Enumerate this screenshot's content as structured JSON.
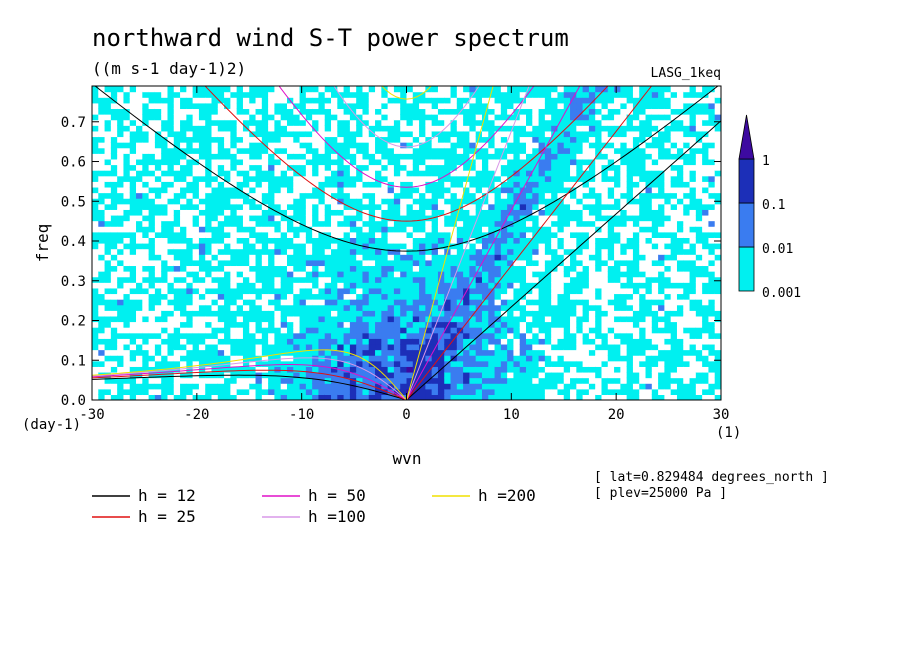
{
  "chart_data": {
    "type": "heatmap",
    "title": "northward wind S-T power spectrum",
    "subtitle": "((m s-1 day-1)2)",
    "model_label": "LASG_1keq",
    "xlabel": "wvn",
    "ylabel": "freq",
    "x_unit": "(1)",
    "y_unit": "(day-1)",
    "xlim": [
      -30,
      30
    ],
    "ylim": [
      0,
      0.79
    ],
    "xticks": [
      "-30",
      "-20",
      "-10",
      "0",
      "10",
      "20",
      "30"
    ],
    "yticks": [
      "0.0",
      "0.1",
      "0.2",
      "0.3",
      "0.4",
      "0.5",
      "0.6",
      "0.7"
    ],
    "colorbar": {
      "levels": [
        "0.001",
        "0.01",
        "0.1",
        "1"
      ],
      "colors": [
        "#ffffff",
        "#00f0f0",
        "#3a7cf0",
        "#1c2fb8",
        "#3d0aa0"
      ]
    },
    "annotations": [
      "[ lat=0.829484 degrees_north ]",
      "[ plev=25000 Pa ]"
    ],
    "dispersion_legend": [
      {
        "label": "h = 12",
        "h": 12,
        "color": "#000000"
      },
      {
        "label": "h = 25",
        "h": 25,
        "color": "#e01010"
      },
      {
        "label": "h = 50",
        "h": 50,
        "color": "#e010c8"
      },
      {
        "label": "h =100",
        "h": 100,
        "color": "#d898e8"
      },
      {
        "label": "h =200",
        "h": 200,
        "color": "#f0e000"
      }
    ]
  }
}
